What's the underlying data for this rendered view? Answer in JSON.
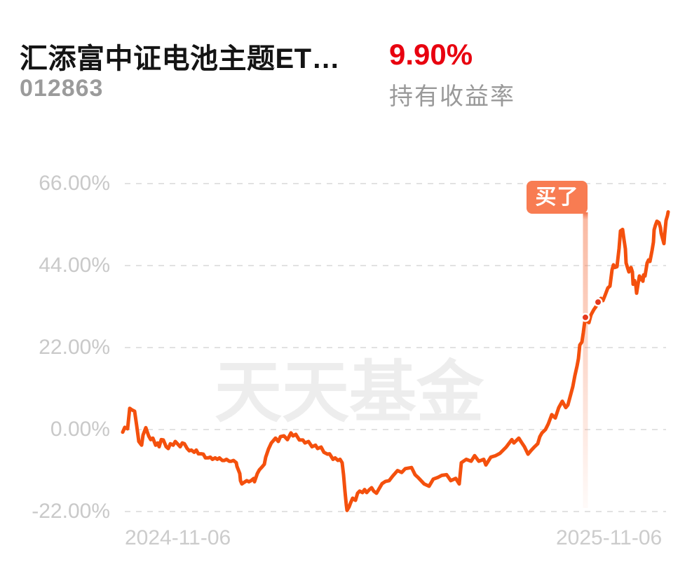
{
  "header": {
    "fund_name": "汇添富中证电池主题ET…",
    "fund_code": "012863",
    "return_value": "9.90%",
    "return_label": "持有收益率"
  },
  "watermark": "天天基金",
  "colors": {
    "line": "#f4500d",
    "return_red": "#e8000f",
    "tooltip_bg": "#f87c52",
    "marker_dot": "#e6391d",
    "marker_band_top": "#f2683c",
    "grid": "#e2e2e2",
    "axis_label": "#c9c9c9",
    "watermark": "#ededed"
  },
  "chart_data": {
    "type": "line",
    "y_axis": {
      "unit": "%",
      "tick_labels": [
        "66.00%",
        "44.00%",
        "22.00%",
        "0.00%",
        "-22.00%"
      ],
      "tick_values": [
        66,
        44,
        22,
        0,
        -22
      ],
      "range": [
        -22,
        66
      ]
    },
    "x_axis": {
      "tick_labels": [
        "2024-11-06",
        "2025-11-06"
      ],
      "unit": "fraction_of_date_range"
    },
    "grid": "dashed-horizontal",
    "legend": "none",
    "buy_marker": {
      "label": "买了",
      "x": 0.8483,
      "dots": [
        {
          "x": 0.8483,
          "y": 30.1
        },
        {
          "x": 0.8715,
          "y": 34.2
        }
      ]
    },
    "series": [
      {
        "name": "持有收益率",
        "color": "#f4500d",
        "points": [
          [
            0.0,
            -0.7
          ],
          [
            0.0039,
            0.6
          ],
          [
            0.009,
            0.2
          ],
          [
            0.0129,
            5.7
          ],
          [
            0.0167,
            5.3
          ],
          [
            0.0219,
            4.9
          ],
          [
            0.0257,
            1.0
          ],
          [
            0.0296,
            -3.2
          ],
          [
            0.0347,
            -4.2
          ],
          [
            0.0373,
            -1.5
          ],
          [
            0.0424,
            0.5
          ],
          [
            0.0476,
            -1.7
          ],
          [
            0.0514,
            -2.7
          ],
          [
            0.0553,
            -2.3
          ],
          [
            0.0604,
            -4.2
          ],
          [
            0.0643,
            -3.6
          ],
          [
            0.0668,
            -4.6
          ],
          [
            0.0707,
            -2.7
          ],
          [
            0.0746,
            -2.8
          ],
          [
            0.0797,
            -4.6
          ],
          [
            0.0836,
            -5.1
          ],
          [
            0.0874,
            -3.8
          ],
          [
            0.0925,
            -4.2
          ],
          [
            0.0964,
            -3.2
          ],
          [
            0.1003,
            -3.8
          ],
          [
            0.1054,
            -4.6
          ],
          [
            0.1093,
            -3.6
          ],
          [
            0.1131,
            -3.8
          ],
          [
            0.1183,
            -5.1
          ],
          [
            0.1221,
            -5.7
          ],
          [
            0.126,
            -5.5
          ],
          [
            0.1311,
            -6.1
          ],
          [
            0.135,
            -5.5
          ],
          [
            0.1388,
            -6.5
          ],
          [
            0.144,
            -6.5
          ],
          [
            0.1478,
            -6.6
          ],
          [
            0.1517,
            -7.6
          ],
          [
            0.1568,
            -7.6
          ],
          [
            0.1607,
            -7.4
          ],
          [
            0.1645,
            -8.0
          ],
          [
            0.1697,
            -7.6
          ],
          [
            0.1735,
            -8.0
          ],
          [
            0.1774,
            -7.6
          ],
          [
            0.1825,
            -8.3
          ],
          [
            0.1864,
            -8.3
          ],
          [
            0.1902,
            -8.0
          ],
          [
            0.1954,
            -8.5
          ],
          [
            0.1992,
            -8.5
          ],
          [
            0.2031,
            -8.3
          ],
          [
            0.2082,
            -8.9
          ],
          [
            0.2095,
            -9.9
          ],
          [
            0.2147,
            -11.8
          ],
          [
            0.2159,
            -13.7
          ],
          [
            0.2185,
            -14.6
          ],
          [
            0.2224,
            -14.2
          ],
          [
            0.2275,
            -13.7
          ],
          [
            0.2314,
            -14.0
          ],
          [
            0.2352,
            -13.7
          ],
          [
            0.2404,
            -13.1
          ],
          [
            0.2417,
            -14.0
          ],
          [
            0.2468,
            -11.8
          ],
          [
            0.2506,
            -10.8
          ],
          [
            0.2545,
            -10.2
          ],
          [
            0.2596,
            -9.3
          ],
          [
            0.2622,
            -7.4
          ],
          [
            0.2674,
            -5.2
          ],
          [
            0.2725,
            -3.6
          ],
          [
            0.2802,
            -2.3
          ],
          [
            0.2854,
            -3.2
          ],
          [
            0.2892,
            -1.9
          ],
          [
            0.2956,
            -1.7
          ],
          [
            0.3021,
            -2.7
          ],
          [
            0.3085,
            -0.9
          ],
          [
            0.3123,
            -1.7
          ],
          [
            0.3175,
            -1.3
          ],
          [
            0.3239,
            -2.8
          ],
          [
            0.3303,
            -2.8
          ],
          [
            0.3342,
            -3.6
          ],
          [
            0.3406,
            -3.2
          ],
          [
            0.347,
            -4.6
          ],
          [
            0.3535,
            -4.2
          ],
          [
            0.3573,
            -5.1
          ],
          [
            0.3638,
            -4.7
          ],
          [
            0.3689,
            -6.1
          ],
          [
            0.3753,
            -6.6
          ],
          [
            0.3792,
            -6.5
          ],
          [
            0.3856,
            -8.0
          ],
          [
            0.3895,
            -7.6
          ],
          [
            0.3946,
            -8.3
          ],
          [
            0.3985,
            -8.0
          ],
          [
            0.4023,
            -8.9
          ],
          [
            0.4049,
            -12.1
          ],
          [
            0.4075,
            -16.5
          ],
          [
            0.41,
            -20.3
          ],
          [
            0.4113,
            -21.7
          ],
          [
            0.4152,
            -20.7
          ],
          [
            0.4178,
            -19.7
          ],
          [
            0.4216,
            -18.4
          ],
          [
            0.4267,
            -19.0
          ],
          [
            0.4306,
            -17.1
          ],
          [
            0.4344,
            -16.5
          ],
          [
            0.4396,
            -16.9
          ],
          [
            0.4434,
            -16.1
          ],
          [
            0.4473,
            -16.9
          ],
          [
            0.4524,
            -16.1
          ],
          [
            0.4563,
            -15.6
          ],
          [
            0.4602,
            -16.5
          ],
          [
            0.4653,
            -17.1
          ],
          [
            0.4692,
            -16.1
          ],
          [
            0.4756,
            -14.5
          ],
          [
            0.482,
            -13.9
          ],
          [
            0.4884,
            -13.7
          ],
          [
            0.4949,
            -12.5
          ],
          [
            0.5039,
            -11.0
          ],
          [
            0.5116,
            -11.5
          ],
          [
            0.518,
            -10.5
          ],
          [
            0.5296,
            -10.2
          ],
          [
            0.536,
            -12.1
          ],
          [
            0.5424,
            -13.0
          ],
          [
            0.5527,
            -14.6
          ],
          [
            0.5617,
            -15.2
          ],
          [
            0.5694,
            -13.3
          ],
          [
            0.5784,
            -12.8
          ],
          [
            0.5848,
            -12.3
          ],
          [
            0.5938,
            -12.1
          ],
          [
            0.6015,
            -13.7
          ],
          [
            0.6105,
            -13.1
          ],
          [
            0.617,
            -14.6
          ],
          [
            0.6208,
            -8.9
          ],
          [
            0.6298,
            -8.0
          ],
          [
            0.6388,
            -8.5
          ],
          [
            0.6452,
            -7.0
          ],
          [
            0.653,
            -8.5
          ],
          [
            0.662,
            -8.0
          ],
          [
            0.6658,
            -9.5
          ],
          [
            0.6748,
            -7.4
          ],
          [
            0.6838,
            -7.0
          ],
          [
            0.6915,
            -6.4
          ],
          [
            0.7031,
            -4.7
          ],
          [
            0.7134,
            -2.7
          ],
          [
            0.7172,
            -3.6
          ],
          [
            0.7262,
            -2.3
          ],
          [
            0.7301,
            -3.2
          ],
          [
            0.7365,
            -4.6
          ],
          [
            0.743,
            -6.6
          ],
          [
            0.7494,
            -5.5
          ],
          [
            0.7545,
            -4.7
          ],
          [
            0.7609,
            -3.8
          ],
          [
            0.7648,
            -1.9
          ],
          [
            0.7686,
            -0.9
          ],
          [
            0.7751,
            0.0
          ],
          [
            0.7802,
            1.5
          ],
          [
            0.7866,
            4.0
          ],
          [
            0.7931,
            3.1
          ],
          [
            0.7995,
            5.9
          ],
          [
            0.8059,
            7.6
          ],
          [
            0.8123,
            5.9
          ],
          [
            0.8162,
            6.6
          ],
          [
            0.8201,
            8.7
          ],
          [
            0.8252,
            11.5
          ],
          [
            0.8291,
            14.5
          ],
          [
            0.8329,
            17.0
          ],
          [
            0.8355,
            19.0
          ],
          [
            0.838,
            22.7
          ],
          [
            0.8419,
            23.5
          ],
          [
            0.8445,
            26.0
          ],
          [
            0.8458,
            27.5
          ],
          [
            0.8483,
            30.1
          ],
          [
            0.8522,
            29.0
          ],
          [
            0.8548,
            28.7
          ],
          [
            0.8586,
            30.8
          ],
          [
            0.8638,
            32.2
          ],
          [
            0.8677,
            33.0
          ],
          [
            0.8715,
            34.2
          ],
          [
            0.8766,
            35.2
          ],
          [
            0.8805,
            34.6
          ],
          [
            0.8843,
            36.0
          ],
          [
            0.8895,
            38.0
          ],
          [
            0.8933,
            38.5
          ],
          [
            0.8972,
            42.9
          ],
          [
            0.8997,
            44.2
          ],
          [
            0.9023,
            43.5
          ],
          [
            0.9062,
            43.7
          ],
          [
            0.91,
            48.6
          ],
          [
            0.9126,
            53.3
          ],
          [
            0.9165,
            53.7
          ],
          [
            0.919,
            51.0
          ],
          [
            0.9216,
            48.5
          ],
          [
            0.9229,
            44.7
          ],
          [
            0.9254,
            43.5
          ],
          [
            0.928,
            42.3
          ],
          [
            0.9319,
            43.5
          ],
          [
            0.9344,
            42.3
          ],
          [
            0.9357,
            39.0
          ],
          [
            0.9383,
            40.0
          ],
          [
            0.9409,
            38.5
          ],
          [
            0.9422,
            36.6
          ],
          [
            0.9447,
            39.0
          ],
          [
            0.9473,
            41.2
          ],
          [
            0.9486,
            40.2
          ],
          [
            0.9512,
            40.8
          ],
          [
            0.9537,
            39.8
          ],
          [
            0.955,
            41.5
          ],
          [
            0.9576,
            41.2
          ],
          [
            0.9614,
            44.7
          ],
          [
            0.964,
            45.5
          ],
          [
            0.9666,
            45.1
          ],
          [
            0.9704,
            48.0
          ],
          [
            0.973,
            50.3
          ],
          [
            0.9743,
            53.6
          ],
          [
            0.9769,
            54.9
          ],
          [
            0.9794,
            55.9
          ],
          [
            0.9833,
            55.5
          ],
          [
            0.9859,
            54.2
          ],
          [
            0.9872,
            52.7
          ],
          [
            0.9897,
            51.3
          ],
          [
            0.9923,
            49.9
          ],
          [
            0.9936,
            52.3
          ],
          [
            0.9961,
            56.1
          ],
          [
            0.9987,
            57.4
          ],
          [
            1.0,
            58.4
          ]
        ]
      }
    ]
  }
}
